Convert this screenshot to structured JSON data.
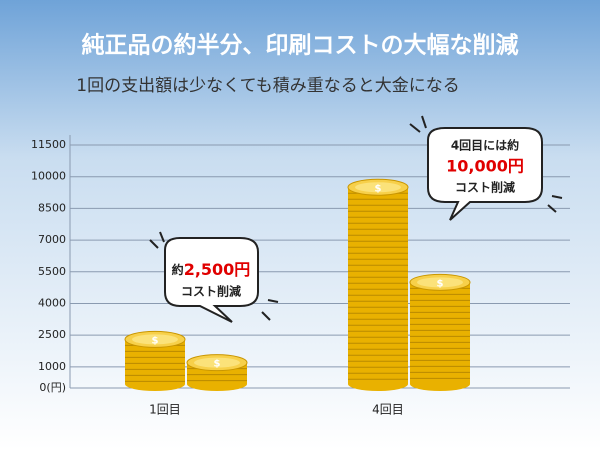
{
  "chart_data": {
    "type": "coin-bar",
    "title": "純正品の約半分、印刷コストの大幅な削減",
    "subtitle": "1回の支出額は少なくても積み重なると大金になる",
    "categories": [
      "1回目",
      "4回目"
    ],
    "series": [
      {
        "color": "#e9b100",
        "values": [
          2300,
          9500
        ]
      },
      {
        "color": "#e9b100",
        "values": [
          1200,
          5000
        ]
      }
    ],
    "ylim": [
      0,
      11500
    ],
    "yticks": [
      {
        "value": 0,
        "label": "0(円)"
      },
      1000,
      2500,
      4000,
      5500,
      7000,
      8500,
      10000,
      11500
    ],
    "grid": true,
    "annotations": [
      {
        "prefix": "約",
        "amount": "2,500円",
        "suffix": "コスト削減"
      },
      {
        "prefix": "4回目には約",
        "amount": "10,000円",
        "suffix": "コスト削減"
      }
    ]
  }
}
